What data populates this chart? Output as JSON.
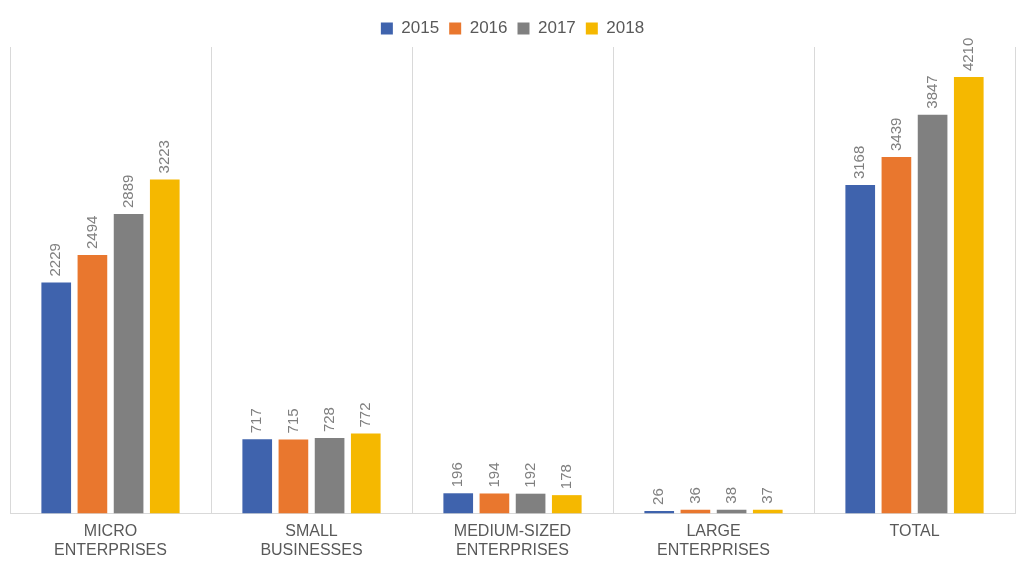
{
  "chart_data": {
    "type": "bar",
    "categories": [
      "MICRO ENTERPRISES",
      "SMALL BUSINESSES",
      "MEDIUM-SIZED ENTERPRISES",
      "LARGE ENTERPRISES",
      "TOTAL"
    ],
    "series": [
      {
        "name": "2015",
        "color": "#3f63ad",
        "values": [
          2229,
          717,
          196,
          26,
          3168
        ]
      },
      {
        "name": "2016",
        "color": "#e9772e",
        "values": [
          2494,
          715,
          194,
          36,
          3439
        ]
      },
      {
        "name": "2017",
        "color": "#808080",
        "values": [
          2889,
          728,
          192,
          38,
          3847
        ]
      },
      {
        "name": "2018",
        "color": "#f5b800",
        "values": [
          3223,
          772,
          178,
          37,
          4210
        ]
      }
    ],
    "data_labels": true,
    "legend": "top",
    "grid": "x",
    "tick_labels": "x"
  }
}
